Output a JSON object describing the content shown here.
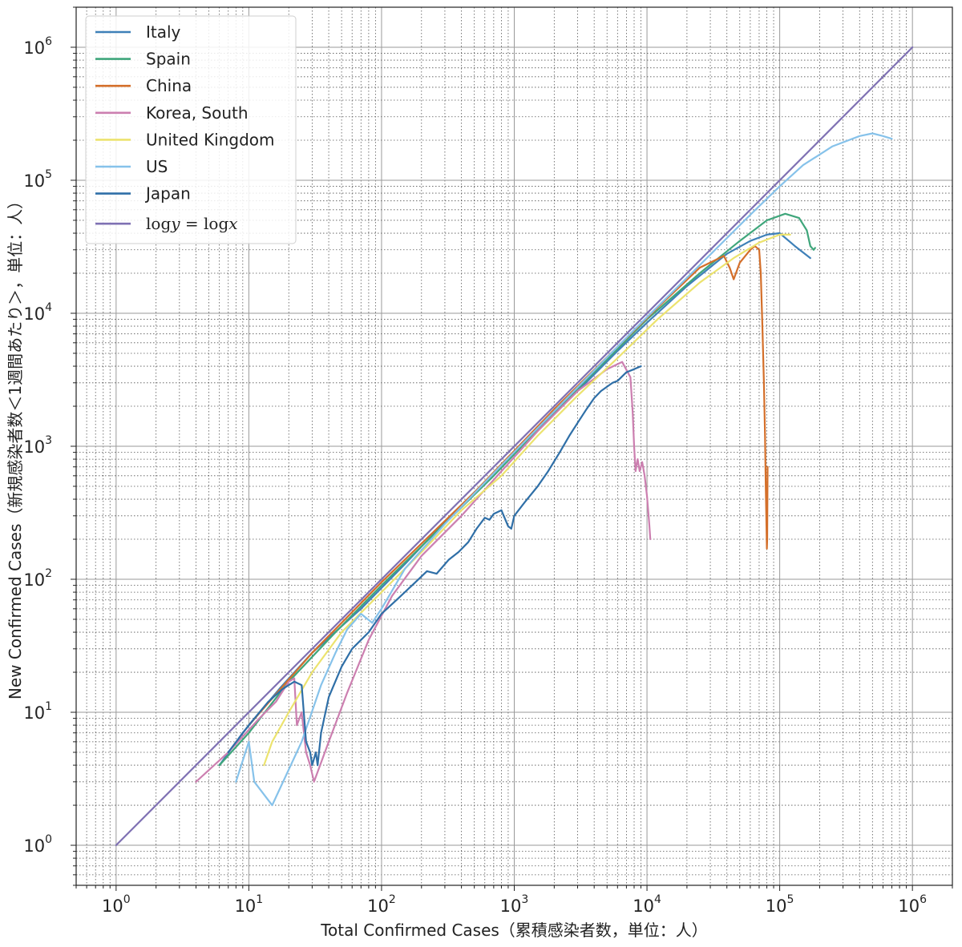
{
  "chart_data": {
    "type": "line",
    "title": "",
    "xlabel": "Total Confirmed Cases（累積感染者数，単位：人）",
    "ylabel": "New Confirmed Cases（新規感染者数＜1週間あたり＞，単位：人）",
    "x_scale": "log",
    "y_scale": "log",
    "xlim": [
      0.5,
      2000000
    ],
    "ylim": [
      0.5,
      2000000
    ],
    "x_ticks": [
      {
        "base": "10",
        "exp": "0",
        "value": 1
      },
      {
        "base": "10",
        "exp": "1",
        "value": 10
      },
      {
        "base": "10",
        "exp": "2",
        "value": 100
      },
      {
        "base": "10",
        "exp": "3",
        "value": 1000
      },
      {
        "base": "10",
        "exp": "4",
        "value": 10000
      },
      {
        "base": "10",
        "exp": "5",
        "value": 100000
      },
      {
        "base": "10",
        "exp": "6",
        "value": 1000000
      }
    ],
    "y_ticks": [
      {
        "base": "10",
        "exp": "0",
        "value": 1
      },
      {
        "base": "10",
        "exp": "1",
        "value": 10
      },
      {
        "base": "10",
        "exp": "2",
        "value": 100
      },
      {
        "base": "10",
        "exp": "3",
        "value": 1000
      },
      {
        "base": "10",
        "exp": "4",
        "value": 10000
      },
      {
        "base": "10",
        "exp": "5",
        "value": 100000
      },
      {
        "base": "10",
        "exp": "6",
        "value": 1000000
      }
    ],
    "grid": true,
    "legend_position": "top-left",
    "series": [
      {
        "name": "Italy",
        "color": "#3e80b8",
        "points": [
          [
            6,
            4
          ],
          [
            9,
            7
          ],
          [
            17,
            15
          ],
          [
            30,
            28
          ],
          [
            70,
            60
          ],
          [
            150,
            130
          ],
          [
            300,
            270
          ],
          [
            1000,
            900
          ],
          [
            3000,
            2600
          ],
          [
            6000,
            5200
          ],
          [
            10000,
            8500
          ],
          [
            20000,
            16000
          ],
          [
            40000,
            28000
          ],
          [
            60000,
            35000
          ],
          [
            80000,
            39000
          ],
          [
            100000,
            40000
          ],
          [
            130000,
            32000
          ],
          [
            170000,
            26000
          ]
        ]
      },
      {
        "name": "Spain",
        "color": "#3fa67b",
        "points": [
          [
            6,
            4
          ],
          [
            10,
            7
          ],
          [
            20,
            17
          ],
          [
            45,
            40
          ],
          [
            100,
            90
          ],
          [
            250,
            220
          ],
          [
            700,
            600
          ],
          [
            2000,
            1800
          ],
          [
            5000,
            4500
          ],
          [
            10000,
            9000
          ],
          [
            25000,
            20000
          ],
          [
            50000,
            35000
          ],
          [
            80000,
            50000
          ],
          [
            110000,
            56000
          ],
          [
            140000,
            52000
          ],
          [
            160000,
            42000
          ],
          [
            170000,
            32000
          ],
          [
            180000,
            30000
          ],
          [
            185000,
            31000
          ]
        ]
      },
      {
        "name": "China",
        "color": "#d46f2a",
        "points": [
          [
            10,
            8
          ],
          [
            30,
            28
          ],
          [
            100,
            95
          ],
          [
            500,
            450
          ],
          [
            2000,
            1900
          ],
          [
            6000,
            5600
          ],
          [
            12000,
            11000
          ],
          [
            25000,
            22000
          ],
          [
            38000,
            27000
          ],
          [
            42000,
            22000
          ],
          [
            45000,
            18000
          ],
          [
            50000,
            24000
          ],
          [
            60000,
            30000
          ],
          [
            65000,
            32000
          ],
          [
            70000,
            30000
          ],
          [
            72000,
            20000
          ],
          [
            74000,
            8000
          ],
          [
            76000,
            3000
          ],
          [
            77500,
            1200
          ],
          [
            78500,
            500
          ],
          [
            79500,
            250
          ],
          [
            80000,
            170
          ],
          [
            80500,
            200
          ],
          [
            81000,
            700
          ]
        ]
      },
      {
        "name": "Korea, South",
        "color": "#cc7fb0",
        "points": [
          [
            4,
            3
          ],
          [
            7,
            5
          ],
          [
            12,
            9
          ],
          [
            16,
            12
          ],
          [
            20,
            17
          ],
          [
            22,
            18
          ],
          [
            23,
            8
          ],
          [
            25,
            10
          ],
          [
            27,
            5
          ],
          [
            29,
            4
          ],
          [
            31,
            3
          ],
          [
            40,
            6
          ],
          [
            55,
            14
          ],
          [
            80,
            35
          ],
          [
            120,
            75
          ],
          [
            200,
            150
          ],
          [
            400,
            300
          ],
          [
            800,
            650
          ],
          [
            1500,
            1300
          ],
          [
            3000,
            2600
          ],
          [
            5000,
            3800
          ],
          [
            6500,
            4300
          ],
          [
            7500,
            3300
          ],
          [
            7800,
            1800
          ],
          [
            8000,
            1000
          ],
          [
            8200,
            650
          ],
          [
            8500,
            800
          ],
          [
            8800,
            650
          ],
          [
            9200,
            760
          ],
          [
            9600,
            600
          ],
          [
            10000,
            420
          ],
          [
            10400,
            260
          ],
          [
            10600,
            200
          ]
        ]
      },
      {
        "name": "United Kingdom",
        "color": "#ece36e",
        "points": [
          [
            13,
            4
          ],
          [
            15,
            6
          ],
          [
            20,
            10
          ],
          [
            30,
            20
          ],
          [
            50,
            40
          ],
          [
            100,
            80
          ],
          [
            200,
            160
          ],
          [
            400,
            330
          ],
          [
            800,
            600
          ],
          [
            1500,
            1200
          ],
          [
            3000,
            2400
          ],
          [
            6000,
            4600
          ],
          [
            12000,
            9000
          ],
          [
            25000,
            17000
          ],
          [
            45000,
            26000
          ],
          [
            70000,
            34000
          ],
          [
            100000,
            39000
          ],
          [
            120000,
            39000
          ]
        ]
      },
      {
        "name": "US",
        "color": "#86c2ea",
        "points": [
          [
            8,
            3
          ],
          [
            10,
            6
          ],
          [
            11,
            3
          ],
          [
            15,
            2
          ],
          [
            25,
            6
          ],
          [
            35,
            16
          ],
          [
            45,
            28
          ],
          [
            55,
            42
          ],
          [
            70,
            55
          ],
          [
            85,
            47
          ],
          [
            100,
            60
          ],
          [
            150,
            120
          ],
          [
            300,
            260
          ],
          [
            800,
            720
          ],
          [
            2500,
            2300
          ],
          [
            8000,
            7500
          ],
          [
            25000,
            23000
          ],
          [
            60000,
            55000
          ],
          [
            100000,
            90000
          ],
          [
            150000,
            130000
          ],
          [
            250000,
            180000
          ],
          [
            400000,
            215000
          ],
          [
            500000,
            225000
          ],
          [
            600000,
            215000
          ],
          [
            700000,
            205000
          ]
        ]
      },
      {
        "name": "Japan",
        "color": "#2f6fa7",
        "points": [
          [
            7,
            5
          ],
          [
            10,
            8
          ],
          [
            14,
            12
          ],
          [
            18,
            15
          ],
          [
            22,
            17
          ],
          [
            25,
            16
          ],
          [
            27,
            6
          ],
          [
            29,
            5
          ],
          [
            30,
            4
          ],
          [
            32,
            5
          ],
          [
            33,
            4
          ],
          [
            35,
            7
          ],
          [
            40,
            13
          ],
          [
            50,
            22
          ],
          [
            60,
            30
          ],
          [
            80,
            40
          ],
          [
            100,
            55
          ],
          [
            130,
            70
          ],
          [
            180,
            95
          ],
          [
            220,
            115
          ],
          [
            260,
            110
          ],
          [
            320,
            140
          ],
          [
            380,
            160
          ],
          [
            450,
            190
          ],
          [
            520,
            240
          ],
          [
            600,
            290
          ],
          [
            650,
            280
          ],
          [
            700,
            310
          ],
          [
            800,
            330
          ],
          [
            900,
            250
          ],
          [
            950,
            240
          ],
          [
            1000,
            300
          ],
          [
            1200,
            380
          ],
          [
            1500,
            500
          ],
          [
            1800,
            650
          ],
          [
            2200,
            900
          ],
          [
            2600,
            1200
          ],
          [
            3000,
            1500
          ],
          [
            3500,
            1900
          ],
          [
            4000,
            2300
          ],
          [
            4500,
            2600
          ],
          [
            5500,
            3000
          ],
          [
            6000,
            3100
          ],
          [
            7000,
            3600
          ],
          [
            8000,
            3800
          ],
          [
            9000,
            4000
          ]
        ]
      },
      {
        "name": "logy = logx",
        "legend_label": "log𝑦 = log𝑥",
        "color": "#7f71b3",
        "points": [
          [
            1,
            1
          ],
          [
            1000000,
            1000000
          ]
        ]
      }
    ]
  }
}
